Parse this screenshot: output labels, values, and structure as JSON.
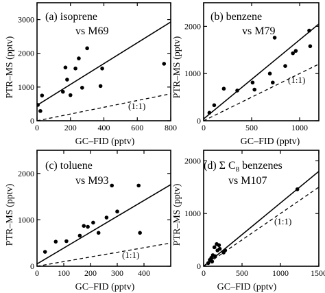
{
  "chart_data": [
    {
      "type": "scatter",
      "panel": "a",
      "title_line1": "(a) isoprene",
      "title_line2": "vs M69",
      "xlabel": "GC–FID (pptv)",
      "ylabel": "PTR–MS (pptv)",
      "xlim": [
        0,
        800
      ],
      "ylim": [
        0,
        3500
      ],
      "xticks": [
        0,
        200,
        400,
        600,
        800
      ],
      "yticks": [
        0,
        1000,
        2000,
        3000
      ],
      "xtick_labels": [
        "0",
        "200",
        "400",
        "600",
        "800"
      ],
      "ytick_labels": [
        "0",
        "1000",
        "2000",
        "3000"
      ],
      "points": [
        [
          5,
          470
        ],
        [
          20,
          290
        ],
        [
          30,
          750
        ],
        [
          155,
          860
        ],
        [
          170,
          1580
        ],
        [
          180,
          1220
        ],
        [
          200,
          760
        ],
        [
          230,
          1550
        ],
        [
          250,
          1850
        ],
        [
          270,
          980
        ],
        [
          300,
          2150
        ],
        [
          380,
          1030
        ],
        [
          390,
          1550
        ],
        [
          760,
          1690
        ]
      ],
      "fit_line": [
        [
          0,
          460
        ],
        [
          800,
          2930
        ]
      ],
      "ref_line": [
        [
          0,
          0
        ],
        [
          800,
          800
        ]
      ],
      "ref_label": "(1:1)"
    },
    {
      "type": "scatter",
      "panel": "b",
      "title_line1": "(b) benzene",
      "title_line2": "vs M79",
      "xlabel": "GC–FID (pptv)",
      "ylabel": "PTR–MS (pptv)",
      "xlim": [
        0,
        1200
      ],
      "ylim": [
        0,
        2500
      ],
      "xticks": [
        0,
        500,
        1000
      ],
      "yticks": [
        0,
        1000,
        2000
      ],
      "xtick_labels": [
        "0",
        "500",
        "1000"
      ],
      "ytick_labels": [
        "0",
        "1000",
        "2000"
      ],
      "points": [
        [
          60,
          170
        ],
        [
          110,
          330
        ],
        [
          210,
          680
        ],
        [
          350,
          640
        ],
        [
          510,
          810
        ],
        [
          530,
          660
        ],
        [
          690,
          1000
        ],
        [
          720,
          810
        ],
        [
          740,
          1760
        ],
        [
          850,
          1160
        ],
        [
          930,
          1430
        ],
        [
          960,
          1480
        ],
        [
          1100,
          1910
        ],
        [
          1110,
          1580
        ]
      ],
      "fit_line": [
        [
          0,
          40
        ],
        [
          1200,
          2050
        ]
      ],
      "ref_line": [
        [
          0,
          0
        ],
        [
          1200,
          1200
        ]
      ],
      "ref_label": "(1:1)"
    },
    {
      "type": "scatter",
      "panel": "c",
      "title_line1": "(c) toluene",
      "title_line2": "vs M93",
      "xlabel": "GC–FID (pptv)",
      "ylabel": "PTR–MS (pptv)",
      "xlim": [
        0,
        500
      ],
      "ylim": [
        0,
        2500
      ],
      "xticks": [
        0,
        100,
        200,
        300,
        400
      ],
      "yticks": [
        0,
        1000,
        2000
      ],
      "xtick_labels": [
        "0",
        "100",
        "200",
        "300",
        "400"
      ],
      "ytick_labels": [
        "0",
        "1000",
        "2000"
      ],
      "points": [
        [
          30,
          310
        ],
        [
          70,
          530
        ],
        [
          110,
          540
        ],
        [
          160,
          660
        ],
        [
          175,
          870
        ],
        [
          190,
          850
        ],
        [
          210,
          940
        ],
        [
          230,
          720
        ],
        [
          260,
          1050
        ],
        [
          280,
          1740
        ],
        [
          300,
          1180
        ],
        [
          380,
          1740
        ],
        [
          385,
          720
        ]
      ],
      "fit_line": [
        [
          0,
          50
        ],
        [
          500,
          1760
        ]
      ],
      "ref_line": [
        [
          0,
          0
        ],
        [
          500,
          500
        ]
      ],
      "ref_label": "(1:1)"
    },
    {
      "type": "scatter",
      "panel": "d",
      "title_line1": "(d) Σ C",
      "title_sub": "8",
      "title_line1_suffix": " benzenes",
      "title_line2": "vs M107",
      "xlabel": "GC–FID (pptv)",
      "ylabel": "PTR–MS (pptv)",
      "xlim": [
        0,
        1500
      ],
      "ylim": [
        0,
        2200
      ],
      "xticks": [
        0,
        500,
        1000,
        1500
      ],
      "yticks": [
        0,
        1000,
        2000
      ],
      "xtick_labels": [
        "0",
        "500",
        "1000",
        "1500"
      ],
      "ytick_labels": [
        "0",
        "1000",
        "2000"
      ],
      "points": [
        [
          60,
          60
        ],
        [
          80,
          120
        ],
        [
          100,
          160
        ],
        [
          110,
          90
        ],
        [
          120,
          210
        ],
        [
          140,
          360
        ],
        [
          150,
          190
        ],
        [
          170,
          420
        ],
        [
          180,
          300
        ],
        [
          200,
          400
        ],
        [
          210,
          330
        ],
        [
          260,
          260
        ],
        [
          280,
          300
        ],
        [
          1220,
          1460
        ]
      ],
      "fit_line": [
        [
          0,
          0
        ],
        [
          1500,
          1800
        ]
      ],
      "ref_line": [
        [
          0,
          0
        ],
        [
          1500,
          1500
        ]
      ],
      "ref_label": "(1:1)"
    }
  ]
}
